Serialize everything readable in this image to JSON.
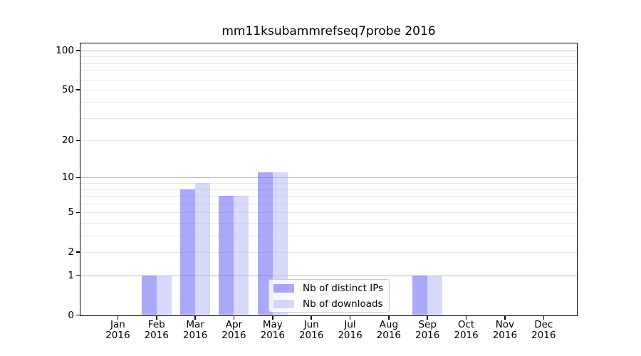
{
  "chart_data": {
    "type": "bar",
    "title": "mm11ksubammrefseq7probe 2016",
    "categories": [
      "Jan",
      "Feb",
      "Mar",
      "Apr",
      "May",
      "Jun",
      "Jul",
      "Aug",
      "Sep",
      "Oct",
      "Nov",
      "Dec"
    ],
    "xtick_year": "2016",
    "series": [
      {
        "name": "Nb of distinct IPs",
        "color": "rgba(99,99,241,0.55)",
        "color_hex_on_white": "#a9a9f7",
        "values": [
          0,
          1,
          8,
          7,
          11,
          0,
          0,
          0,
          1,
          0,
          0,
          0
        ]
      },
      {
        "name": "Nb of downloads",
        "color": "rgba(184,184,244,0.55)",
        "color_hex_on_white": "#d8d8f9",
        "values": [
          0,
          1,
          9,
          7,
          11,
          0,
          0,
          0,
          1,
          0,
          0,
          0
        ]
      }
    ],
    "yscale": "log1p",
    "yticks": [
      0,
      1,
      2,
      5,
      10,
      20,
      50,
      100
    ],
    "y_major_gridlines": [
      1,
      10,
      100
    ],
    "y_minor_gridlines": [
      2,
      3,
      4,
      5,
      6,
      7,
      8,
      9,
      20,
      30,
      40,
      50,
      60,
      70,
      80,
      90
    ],
    "ylim": [
      0,
      113
    ],
    "grid": true,
    "legend_position": "lower center",
    "axis_color": "#000000",
    "major_grid_color": "#b4b4b4",
    "minor_grid_color": "#e8e8e8"
  }
}
